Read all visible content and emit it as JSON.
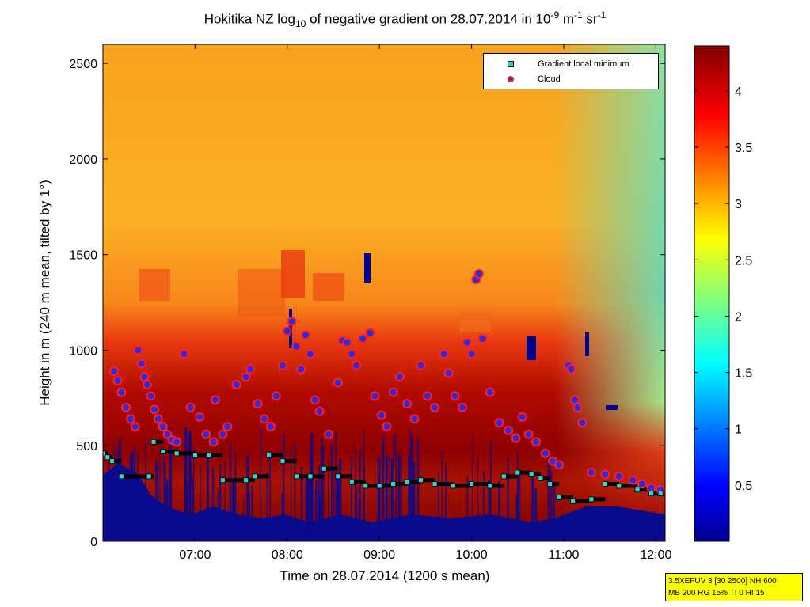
{
  "title": {
    "prefix": "Hokitika NZ log",
    "log_sub": "10",
    "middle": " of negative gradient on 28.07.2014 in 10",
    "exp1": "-9",
    "unit_mid": " m",
    "exp2": "-1",
    "unit_end": " sr",
    "exp3": "-1"
  },
  "legend": {
    "gradient_min_label": "Gradient local minimum",
    "cloud_label": "Cloud"
  },
  "infobox": {
    "line1": "3.5XEFUV 3 [30 2500] NH 600",
    "line2": "MB 200 RG 15% TI 0 HI 15"
  },
  "colors": {
    "blue": "#0a0a8c",
    "cyan": "#27d5d5",
    "red": "#ff2020"
  },
  "chart_data": {
    "type": "heatmap",
    "title": "Hokitika NZ log10 of negative gradient on 28.07.2014 in 10^-9 m^-1 sr^-1",
    "xlabel": "Time on 28.07.2014 (1200 s mean)",
    "ylabel": "Height in m (240 m mean, tilted by 1°)",
    "xlim_hours": [
      6.0,
      12.1
    ],
    "ylim": [
      0,
      2600
    ],
    "xticks": [
      {
        "hour": 7,
        "label": "07:00"
      },
      {
        "hour": 8,
        "label": "08:00"
      },
      {
        "hour": 9,
        "label": "09:00"
      },
      {
        "hour": 10,
        "label": "10:00"
      },
      {
        "hour": 11,
        "label": "11:00"
      },
      {
        "hour": 12,
        "label": "12:00"
      }
    ],
    "yticks": [
      {
        "value": 0,
        "label": "0"
      },
      {
        "value": 500,
        "label": "500"
      },
      {
        "value": 1000,
        "label": "1000"
      },
      {
        "value": 1500,
        "label": "1500"
      },
      {
        "value": 2000,
        "label": "2000"
      },
      {
        "value": 2500,
        "label": "2500"
      }
    ],
    "colorbar": {
      "range": [
        0,
        4.4
      ],
      "ticks": [
        {
          "value": 0.5,
          "label": "0.5"
        },
        {
          "value": 1,
          "label": "1"
        },
        {
          "value": 1.5,
          "label": "1.5"
        },
        {
          "value": 2,
          "label": "2"
        },
        {
          "value": 2.5,
          "label": "2.5"
        },
        {
          "value": 3,
          "label": "3"
        },
        {
          "value": 3.5,
          "label": "3.5"
        },
        {
          "value": 4,
          "label": "4"
        }
      ]
    },
    "legend_position": "top-right",
    "series": [
      {
        "name": "Gradient local minimum",
        "marker": "square",
        "points": [
          [
            6.0,
            460
          ],
          [
            6.05,
            440
          ],
          [
            6.1,
            420
          ],
          [
            6.2,
            340
          ],
          [
            6.5,
            340
          ],
          [
            6.55,
            520
          ],
          [
            6.65,
            470
          ],
          [
            6.8,
            460
          ],
          [
            7.0,
            450
          ],
          [
            7.15,
            450
          ],
          [
            7.3,
            320
          ],
          [
            7.55,
            320
          ],
          [
            7.65,
            340
          ],
          [
            7.8,
            450
          ],
          [
            7.95,
            420
          ],
          [
            8.1,
            340
          ],
          [
            8.25,
            340
          ],
          [
            8.4,
            380
          ],
          [
            8.55,
            340
          ],
          [
            8.7,
            310
          ],
          [
            8.85,
            290
          ],
          [
            9.0,
            290
          ],
          [
            9.15,
            300
          ],
          [
            9.3,
            310
          ],
          [
            9.45,
            320
          ],
          [
            9.6,
            300
          ],
          [
            9.8,
            290
          ],
          [
            10.0,
            300
          ],
          [
            10.2,
            290
          ],
          [
            10.35,
            340
          ],
          [
            10.5,
            360
          ],
          [
            10.65,
            350
          ],
          [
            10.75,
            330
          ],
          [
            10.85,
            300
          ],
          [
            10.95,
            230
          ],
          [
            11.1,
            210
          ],
          [
            11.3,
            220
          ],
          [
            11.45,
            300
          ],
          [
            11.6,
            290
          ],
          [
            11.8,
            270
          ],
          [
            11.95,
            250
          ],
          [
            12.05,
            250
          ]
        ]
      },
      {
        "name": "Cloud",
        "marker": "circle",
        "points": [
          [
            6.12,
            890
          ],
          [
            6.16,
            840
          ],
          [
            6.2,
            780
          ],
          [
            6.25,
            700
          ],
          [
            6.3,
            640
          ],
          [
            6.35,
            600
          ],
          [
            6.38,
            1000
          ],
          [
            6.42,
            930
          ],
          [
            6.45,
            860
          ],
          [
            6.48,
            820
          ],
          [
            6.52,
            760
          ],
          [
            6.56,
            690
          ],
          [
            6.6,
            640
          ],
          [
            6.65,
            600
          ],
          [
            6.7,
            560
          ],
          [
            6.75,
            530
          ],
          [
            6.8,
            520
          ],
          [
            6.88,
            980
          ],
          [
            6.95,
            700
          ],
          [
            7.05,
            650
          ],
          [
            7.12,
            560
          ],
          [
            7.2,
            520
          ],
          [
            7.22,
            740
          ],
          [
            7.3,
            560
          ],
          [
            7.35,
            600
          ],
          [
            7.45,
            820
          ],
          [
            7.55,
            860
          ],
          [
            7.6,
            900
          ],
          [
            7.68,
            720
          ],
          [
            7.75,
            640
          ],
          [
            7.82,
            600
          ],
          [
            7.88,
            760
          ],
          [
            7.95,
            920
          ],
          [
            8.0,
            1100
          ],
          [
            8.05,
            1150
          ],
          [
            8.1,
            1020
          ],
          [
            8.15,
            900
          ],
          [
            8.2,
            1080
          ],
          [
            8.25,
            980
          ],
          [
            8.3,
            740
          ],
          [
            8.35,
            680
          ],
          [
            8.45,
            560
          ],
          [
            8.55,
            830
          ],
          [
            8.6,
            1050
          ],
          [
            8.65,
            1040
          ],
          [
            8.7,
            980
          ],
          [
            8.75,
            920
          ],
          [
            8.82,
            1060
          ],
          [
            8.9,
            1090
          ],
          [
            8.95,
            760
          ],
          [
            9.02,
            660
          ],
          [
            9.08,
            600
          ],
          [
            9.15,
            780
          ],
          [
            9.22,
            860
          ],
          [
            9.3,
            720
          ],
          [
            9.38,
            640
          ],
          [
            9.45,
            920
          ],
          [
            9.52,
            760
          ],
          [
            9.6,
            700
          ],
          [
            9.7,
            980
          ],
          [
            9.75,
            880
          ],
          [
            9.82,
            760
          ],
          [
            9.9,
            700
          ],
          [
            9.95,
            1040
          ],
          [
            10.0,
            980
          ],
          [
            10.05,
            1370
          ],
          [
            10.08,
            1400
          ],
          [
            10.12,
            1060
          ],
          [
            10.2,
            780
          ],
          [
            10.3,
            620
          ],
          [
            10.4,
            580
          ],
          [
            10.48,
            540
          ],
          [
            10.55,
            650
          ],
          [
            10.62,
            560
          ],
          [
            10.7,
            520
          ],
          [
            10.8,
            460
          ],
          [
            10.88,
            420
          ],
          [
            10.95,
            400
          ],
          [
            11.05,
            920
          ],
          [
            11.08,
            900
          ],
          [
            11.12,
            740
          ],
          [
            11.15,
            700
          ],
          [
            11.2,
            620
          ],
          [
            11.3,
            360
          ],
          [
            11.45,
            350
          ],
          [
            11.6,
            340
          ],
          [
            11.75,
            320
          ],
          [
            11.85,
            300
          ],
          [
            11.95,
            280
          ],
          [
            12.05,
            270
          ]
        ]
      }
    ]
  }
}
